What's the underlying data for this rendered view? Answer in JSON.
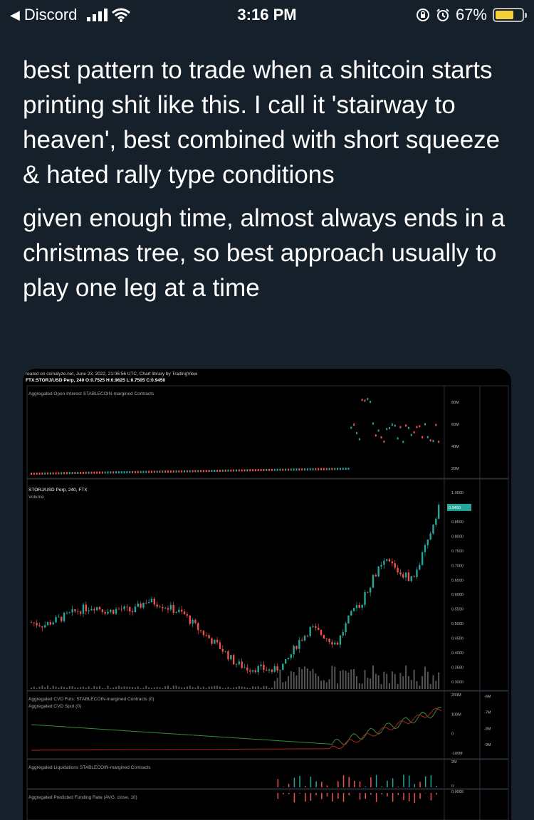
{
  "status_bar": {
    "back_label": "Discord",
    "time": "3:16 PM",
    "battery_text": "67%",
    "battery_level": 0.67,
    "signal_bars": 4,
    "icons": [
      "back-arrow-icon",
      "signal-icon",
      "wifi-icon",
      "lock-rotation-icon",
      "alarm-icon",
      "battery-icon"
    ]
  },
  "tweet": {
    "paragraphs": [
      "best pattern to trade when a shitcoin starts printing shit like this.  I call it 'stairway to heaven', best combined with short squeeze & hated rally type conditions",
      "given enough time, almost always ends in a christmas tree, so best approach usually to play one leg at a time"
    ]
  },
  "chart": {
    "header1": "reated on coinalyze.net, June 23, 2022, 21:06:56 UTC, Chart library by TradingView",
    "header2": "FTX:STORJ/USD Perp, 240 O:0.7525 H:0.9625 L:0.7505 C:0.9450",
    "panes": {
      "oi_title": "Aggregated Open Interest STABLECOIN-margined Contracts",
      "price_title": "STORJ/USD Perp, 240, FTX",
      "volume_title": "Volume",
      "cvd_title1": "Aggregated CVD Futs. STABLECOIN-margined Contracts (0)",
      "cvd_title2": "Aggregated CVD Spot (0)",
      "liq_title": "Aggregated Liquidations STABLECOIN-margined Contracts",
      "funding_title": "Aggregated Predicted Funding Rate (AVG, close, 10)"
    },
    "oi_ticks": [
      "80M",
      "60M",
      "40M",
      "20M"
    ],
    "price_ticks": [
      "1.0000",
      "0.9000",
      "0.8500",
      "0.8000",
      "0.7500",
      "0.7000",
      "0.6500",
      "0.6000",
      "0.5500",
      "0.5000",
      "0.4500",
      "0.4000",
      "0.3500",
      "0.3000"
    ],
    "last_price": "0.9450",
    "cvd_ticks": [
      "200M",
      "100M",
      "0",
      "-100M"
    ],
    "cvd_spot_ticks": [
      "-6M",
      "-7M",
      "-8M",
      "-9M"
    ],
    "liq_ticks": [
      "2M",
      "0"
    ],
    "funding_ticks": [
      "0.0000"
    ],
    "colors": {
      "up": "#26a69a",
      "down": "#ef5350",
      "grid": "#2a2e39",
      "spot_line": "#3a8a3a",
      "futs_line": "#b22222"
    }
  },
  "chart_data": {
    "type": "candlestick",
    "symbol": "FTX:STORJ/USD Perp",
    "interval": "240",
    "ohlc_last": {
      "open": 0.7525,
      "high": 0.9625,
      "low": 0.7505,
      "close": 0.945
    },
    "price_path": [
      0.52,
      0.51,
      0.53,
      0.55,
      0.57,
      0.58,
      0.56,
      0.57,
      0.56,
      0.6,
      0.59,
      0.57,
      0.55,
      0.5,
      0.46,
      0.42,
      0.37,
      0.35,
      0.35,
      0.34,
      0.37,
      0.45,
      0.5,
      0.47,
      0.44,
      0.54,
      0.6,
      0.7,
      0.75,
      0.7,
      0.68,
      0.8,
      0.95
    ],
    "y_range": [
      0.3,
      1.0
    ]
  }
}
